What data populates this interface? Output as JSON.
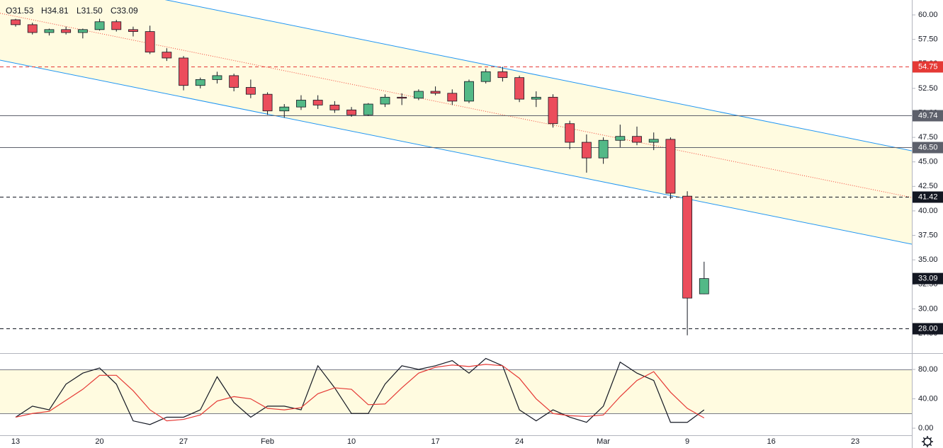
{
  "chart_data": [
    {
      "type": "candlestick",
      "ohlc_labels": [
        "O31.53",
        "H34.81",
        "L31.50",
        "C33.09"
      ],
      "x": [
        0,
        1,
        2,
        3,
        4,
        5,
        6,
        7,
        8,
        9,
        10,
        11,
        12,
        13,
        14,
        15,
        16,
        17,
        18,
        19,
        20,
        21,
        22,
        23,
        24,
        25,
        26,
        27,
        28,
        29,
        30,
        31,
        32,
        33,
        34,
        35,
        36,
        37,
        38,
        39,
        40,
        41
      ],
      "open": [
        59.5,
        59.0,
        58.2,
        58.5,
        58.2,
        58.5,
        59.3,
        58.5,
        58.3,
        56.2,
        55.6,
        52.8,
        53.4,
        53.8,
        52.6,
        51.9,
        50.2,
        50.6,
        51.3,
        50.8,
        50.3,
        49.8,
        50.9,
        51.6,
        51.5,
        52.2,
        52.0,
        51.2,
        53.2,
        54.2,
        53.6,
        51.4,
        51.6,
        48.9,
        47.0,
        45.4,
        47.2,
        47.6,
        47.0,
        47.3,
        41.5,
        31.53
      ],
      "high": [
        59.6,
        59.2,
        58.6,
        58.8,
        58.6,
        59.6,
        59.5,
        58.8,
        58.9,
        56.6,
        55.8,
        53.6,
        54.2,
        54.0,
        53.4,
        52.1,
        50.9,
        51.8,
        51.8,
        51.2,
        50.6,
        51.0,
        51.9,
        52.0,
        52.4,
        52.7,
        52.4,
        53.4,
        54.5,
        54.7,
        53.8,
        52.2,
        51.9,
        49.2,
        47.8,
        47.5,
        48.8,
        48.6,
        48.0,
        47.5,
        42.0,
        34.81
      ],
      "low": [
        58.8,
        58.0,
        57.9,
        58.0,
        57.6,
        58.4,
        58.3,
        57.8,
        56.0,
        55.3,
        52.3,
        52.5,
        53.0,
        52.2,
        51.5,
        49.8,
        49.5,
        50.3,
        50.4,
        50.0,
        49.6,
        49.7,
        50.6,
        50.8,
        51.3,
        51.8,
        50.8,
        51.0,
        53.0,
        53.2,
        51.1,
        50.6,
        48.5,
        46.3,
        43.9,
        44.8,
        46.5,
        46.7,
        46.2,
        41.2,
        27.3,
        31.5
      ],
      "close": [
        59.0,
        58.2,
        58.5,
        58.2,
        58.5,
        59.3,
        58.5,
        58.3,
        56.2,
        55.6,
        52.8,
        53.4,
        53.8,
        52.6,
        51.9,
        50.2,
        50.6,
        51.3,
        50.8,
        50.3,
        49.8,
        50.9,
        51.6,
        51.5,
        52.2,
        52.0,
        51.2,
        53.2,
        54.2,
        53.6,
        51.4,
        51.6,
        48.9,
        47.0,
        45.4,
        47.2,
        47.6,
        47.0,
        47.3,
        41.8,
        31.1,
        33.09
      ],
      "up_color": "#53b987",
      "down_color": "#eb4d5c",
      "xlim": [
        -0.93,
        53.37
      ],
      "ylim": [
        25.55,
        61.52
      ],
      "xticks": [
        {
          "value": 0,
          "label": "13"
        },
        {
          "value": 5,
          "label": "20"
        },
        {
          "value": 10,
          "label": "27"
        },
        {
          "value": 15,
          "label": "Feb"
        },
        {
          "value": 20,
          "label": "10"
        },
        {
          "value": 25,
          "label": "17"
        },
        {
          "value": 30,
          "label": "24"
        },
        {
          "value": 35,
          "label": "Mar"
        },
        {
          "value": 40,
          "label": "9"
        },
        {
          "value": 45,
          "label": "16"
        },
        {
          "value": 50,
          "label": "23"
        }
      ],
      "yticks": [
        {
          "value": 27.5,
          "label": "27.50"
        },
        {
          "value": 30,
          "label": "30.00"
        },
        {
          "value": 32.5,
          "label": "32.50"
        },
        {
          "value": 35,
          "label": "35.00"
        },
        {
          "value": 37.5,
          "label": "37.50"
        },
        {
          "value": 40,
          "label": "40.00"
        },
        {
          "value": 42.5,
          "label": "42.50"
        },
        {
          "value": 45,
          "label": "45.00"
        },
        {
          "value": 47.5,
          "label": "47.50"
        },
        {
          "value": 50,
          "label": "50.00"
        },
        {
          "value": 52.5,
          "label": "52.50"
        },
        {
          "value": 55,
          "label": "55.00"
        },
        {
          "value": 57.5,
          "label": "57.50"
        },
        {
          "value": 60,
          "label": "60.00"
        }
      ],
      "channel": {
        "x": [
          -0.93,
          53.37
        ],
        "upper": [
          64.96,
          46.13
        ],
        "lower": [
          55.38,
          36.6
        ],
        "line_color": "#2196f3",
        "fill": "#fffbe0",
        "mid_color": "#f44336"
      },
      "levels": [
        {
          "value": 54.75,
          "label": "54.75",
          "color": "#e53935",
          "dashed": true
        },
        {
          "value": 49.74,
          "label": "49.74",
          "color": "#5d606b",
          "dashed": false
        },
        {
          "value": 46.5,
          "label": "46.50",
          "color": "#5d606b",
          "dashed": false
        },
        {
          "value": 41.42,
          "label": "41.42",
          "color": "#131722",
          "dashed": true
        },
        {
          "value": 28.0,
          "label": "28.00",
          "color": "#131722",
          "dashed": true
        }
      ],
      "last_price": {
        "value": 33.09,
        "label": "33.09",
        "color": "#131722"
      }
    },
    {
      "type": "line",
      "x": [
        0,
        1,
        2,
        3,
        4,
        5,
        6,
        7,
        8,
        9,
        10,
        11,
        12,
        13,
        14,
        15,
        16,
        17,
        18,
        19,
        20,
        21,
        22,
        23,
        24,
        25,
        26,
        27,
        28,
        29,
        30,
        31,
        32,
        33,
        34,
        35,
        36,
        37,
        38,
        39,
        40,
        41
      ],
      "series": [
        {
          "color": "#131722",
          "values": [
            15,
            30,
            25,
            60,
            75,
            82,
            60,
            10,
            5,
            15,
            15,
            25,
            70,
            35,
            15,
            30,
            30,
            25,
            85,
            55,
            20,
            20,
            60,
            85,
            80,
            85,
            92,
            75,
            95,
            85,
            25,
            10,
            25,
            15,
            8,
            30,
            90,
            75,
            65,
            8,
            8,
            25
          ]
        },
        {
          "color": "#e53935",
          "values": [
            15,
            20,
            23,
            38,
            53,
            72,
            72,
            51,
            25,
            10,
            12,
            18,
            37,
            43,
            40,
            27,
            25,
            28,
            47,
            55,
            53,
            32,
            33,
            55,
            75,
            83,
            86,
            84,
            87,
            85,
            68,
            40,
            20,
            17,
            16,
            18,
            43,
            65,
            77,
            49,
            27,
            14
          ]
        }
      ],
      "band": [
        20,
        80
      ],
      "band_fill": "#fffbe0",
      "xlim": [
        -0.93,
        53.37
      ],
      "ylim": [
        -9.6,
        101.2
      ],
      "yticks": [
        {
          "value": 0,
          "label": "0.00"
        },
        {
          "value": 40,
          "label": "40.00"
        },
        {
          "value": 80,
          "label": "80.00"
        }
      ]
    }
  ]
}
